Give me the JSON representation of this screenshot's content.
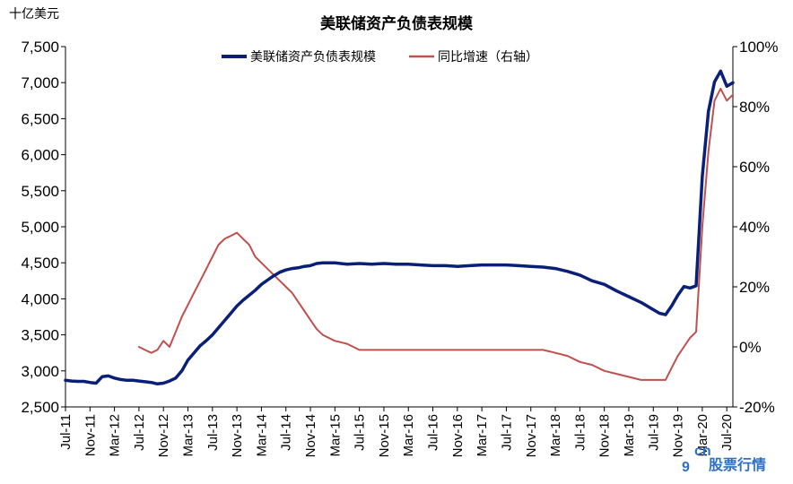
{
  "chart_data": {
    "type": "line",
    "title": "美联储资产负债表规模",
    "y_unit_label": "十亿美元",
    "y_left": {
      "min": 2500,
      "max": 7500,
      "step": 500,
      "ticks": [
        "2,500",
        "3,000",
        "3,500",
        "4,000",
        "4,500",
        "5,000",
        "5,500",
        "6,000",
        "6,500",
        "7,000",
        "7,500"
      ]
    },
    "y_right": {
      "min": -20,
      "max": 100,
      "step": 20,
      "ticks": [
        "-20%",
        "0%",
        "20%",
        "40%",
        "60%",
        "80%",
        "100%"
      ]
    },
    "x_ticks": [
      "Jul-11",
      "Nov-11",
      "Mar-12",
      "Jul-12",
      "Nov-12",
      "Mar-13",
      "Jul-13",
      "Nov-13",
      "Mar-14",
      "Jul-14",
      "Nov-14",
      "Mar-15",
      "Jul-15",
      "Nov-15",
      "Mar-16",
      "Jul-16",
      "Nov-16",
      "Mar-17",
      "Jul-17",
      "Nov-17",
      "Mar-18",
      "Jul-18",
      "Nov-18",
      "Mar-19",
      "Jul-19",
      "Nov-19",
      "Mar-20",
      "Jul-20"
    ],
    "grid": false,
    "legend_position": "top-center",
    "series": [
      {
        "name": "美联储资产负债表规模",
        "axis": "left",
        "color": "#0a1f78",
        "x": [
          "2011-07",
          "2011-08",
          "2011-09",
          "2011-10",
          "2011-11",
          "2011-12",
          "2012-01",
          "2012-02",
          "2012-03",
          "2012-04",
          "2012-05",
          "2012-06",
          "2012-07",
          "2012-08",
          "2012-09",
          "2012-10",
          "2012-11",
          "2012-12",
          "2013-01",
          "2013-02",
          "2013-03",
          "2013-04",
          "2013-05",
          "2013-06",
          "2013-07",
          "2013-08",
          "2013-09",
          "2013-10",
          "2013-11",
          "2013-12",
          "2014-01",
          "2014-02",
          "2014-03",
          "2014-04",
          "2014-05",
          "2014-06",
          "2014-07",
          "2014-08",
          "2014-09",
          "2014-10",
          "2014-11",
          "2014-12",
          "2015-01",
          "2015-03",
          "2015-05",
          "2015-07",
          "2015-09",
          "2015-11",
          "2016-01",
          "2016-03",
          "2016-05",
          "2016-07",
          "2016-09",
          "2016-11",
          "2017-01",
          "2017-03",
          "2017-05",
          "2017-07",
          "2017-09",
          "2017-11",
          "2018-01",
          "2018-03",
          "2018-05",
          "2018-07",
          "2018-09",
          "2018-11",
          "2019-01",
          "2019-03",
          "2019-05",
          "2019-07",
          "2019-08",
          "2019-09",
          "2019-10",
          "2019-11",
          "2019-12",
          "2020-01",
          "2020-02",
          "2020-03",
          "2020-04",
          "2020-05",
          "2020-06",
          "2020-07",
          "2020-08"
        ],
        "values": [
          2870,
          2860,
          2855,
          2855,
          2840,
          2830,
          2920,
          2930,
          2900,
          2880,
          2870,
          2870,
          2860,
          2850,
          2840,
          2820,
          2830,
          2860,
          2900,
          3000,
          3150,
          3250,
          3350,
          3420,
          3500,
          3600,
          3700,
          3800,
          3900,
          3980,
          4050,
          4120,
          4200,
          4260,
          4320,
          4370,
          4400,
          4420,
          4430,
          4450,
          4460,
          4490,
          4500,
          4500,
          4480,
          4490,
          4480,
          4490,
          4480,
          4480,
          4470,
          4460,
          4460,
          4450,
          4460,
          4470,
          4470,
          4470,
          4460,
          4450,
          4440,
          4420,
          4380,
          4330,
          4250,
          4200,
          4110,
          4030,
          3950,
          3850,
          3800,
          3780,
          3900,
          4050,
          4170,
          4150,
          4180,
          5700,
          6600,
          7010,
          7160,
          6950,
          7000
        ]
      },
      {
        "name": "同比增速（右轴）",
        "axis": "right",
        "color": "#c0504d",
        "x": [
          "2012-07",
          "2012-08",
          "2012-09",
          "2012-10",
          "2012-11",
          "2012-12",
          "2013-01",
          "2013-02",
          "2013-03",
          "2013-04",
          "2013-05",
          "2013-06",
          "2013-07",
          "2013-08",
          "2013-09",
          "2013-10",
          "2013-11",
          "2013-12",
          "2014-01",
          "2014-02",
          "2014-03",
          "2014-04",
          "2014-05",
          "2014-06",
          "2014-07",
          "2014-08",
          "2014-09",
          "2014-10",
          "2014-11",
          "2014-12",
          "2015-01",
          "2015-03",
          "2015-05",
          "2015-07",
          "2015-09",
          "2015-11",
          "2016-01",
          "2016-03",
          "2016-05",
          "2016-07",
          "2016-09",
          "2016-11",
          "2017-01",
          "2017-03",
          "2017-05",
          "2017-07",
          "2017-09",
          "2017-11",
          "2018-01",
          "2018-03",
          "2018-05",
          "2018-07",
          "2018-09",
          "2018-11",
          "2019-01",
          "2019-03",
          "2019-05",
          "2019-07",
          "2019-08",
          "2019-09",
          "2019-10",
          "2019-11",
          "2019-12",
          "2020-01",
          "2020-02",
          "2020-03",
          "2020-04",
          "2020-05",
          "2020-06",
          "2020-07",
          "2020-08"
        ],
        "values": [
          0,
          -1,
          -2,
          -1,
          2,
          0,
          5,
          10,
          14,
          18,
          22,
          26,
          30,
          34,
          36,
          37,
          38,
          36,
          34,
          30,
          28,
          26,
          24,
          22,
          20,
          18,
          15,
          12,
          9,
          6,
          4,
          2,
          1,
          -1,
          -1,
          -1,
          -1,
          -1,
          -1,
          -1,
          -1,
          -1,
          -1,
          -1,
          -1,
          -1,
          -1,
          -1,
          -1,
          -2,
          -3,
          -5,
          -6,
          -8,
          -9,
          -10,
          -11,
          -11,
          -11,
          -11,
          -7,
          -3,
          0,
          3,
          5,
          40,
          65,
          82,
          86,
          82,
          84
        ]
      }
    ]
  },
  "watermark": {
    "brand": "股票行情",
    "glyph": "9",
    "sub": "cn"
  }
}
